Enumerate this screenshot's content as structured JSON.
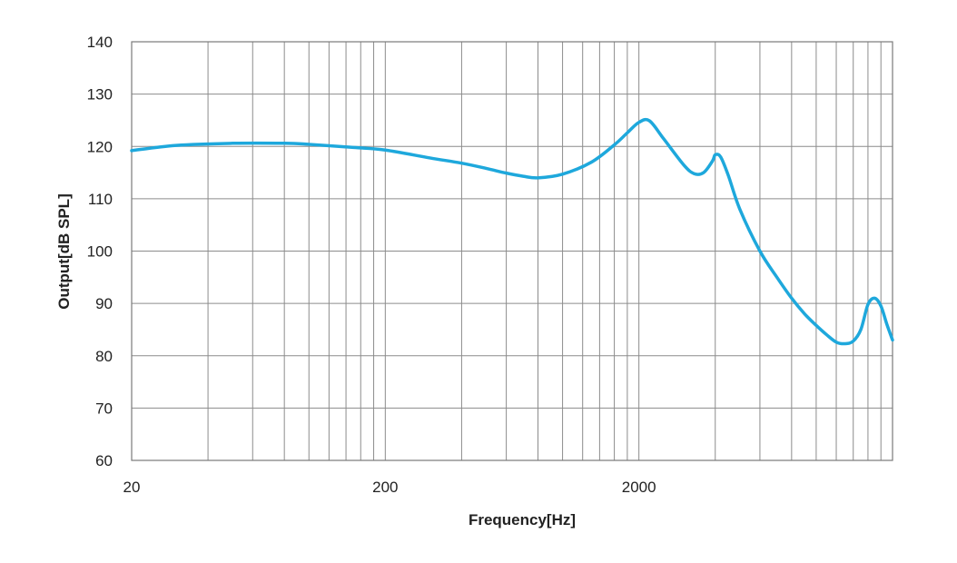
{
  "chart_data": {
    "type": "line",
    "title": "",
    "xlabel": "Frequency[Hz]",
    "ylabel": "Output[dB SPL]",
    "x_scale": "log",
    "xlim": [
      20,
      20000
    ],
    "ylim": [
      60,
      140
    ],
    "x_tick_labels": [
      "20",
      "200",
      "2000"
    ],
    "x_tick_values": [
      20,
      200,
      2000
    ],
    "y_tick_values": [
      60,
      70,
      80,
      90,
      100,
      110,
      120,
      130,
      140
    ],
    "grid": true,
    "legend": "none",
    "line_color": "#1ea8dc",
    "series": [
      {
        "x": [
          20,
          30,
          50,
          80,
          100,
          150,
          200,
          300,
          400,
          500,
          600,
          700,
          800,
          1000,
          1300,
          1600,
          1800,
          2000,
          2200,
          2500,
          3000,
          3300,
          3600,
          3900,
          4000,
          4200,
          4500,
          5000,
          6000,
          7000,
          8000,
          9000,
          10000,
          11000,
          12000,
          13000,
          14000,
          15000,
          16000,
          17000,
          18000,
          19000,
          20000
        ],
        "y": [
          119.2,
          120.2,
          120.6,
          120.6,
          120.4,
          119.8,
          119.3,
          117.8,
          116.8,
          115.8,
          114.9,
          114.3,
          114.0,
          114.7,
          117.0,
          120.3,
          122.6,
          124.6,
          124.9,
          121.5,
          116.5,
          114.8,
          115.0,
          117.2,
          118.4,
          118.0,
          114.5,
          108.0,
          100.0,
          95.0,
          91.0,
          88.0,
          85.8,
          84.0,
          82.6,
          82.3,
          82.8,
          85.0,
          89.8,
          91.0,
          89.5,
          86.0,
          83.0
        ]
      }
    ]
  }
}
